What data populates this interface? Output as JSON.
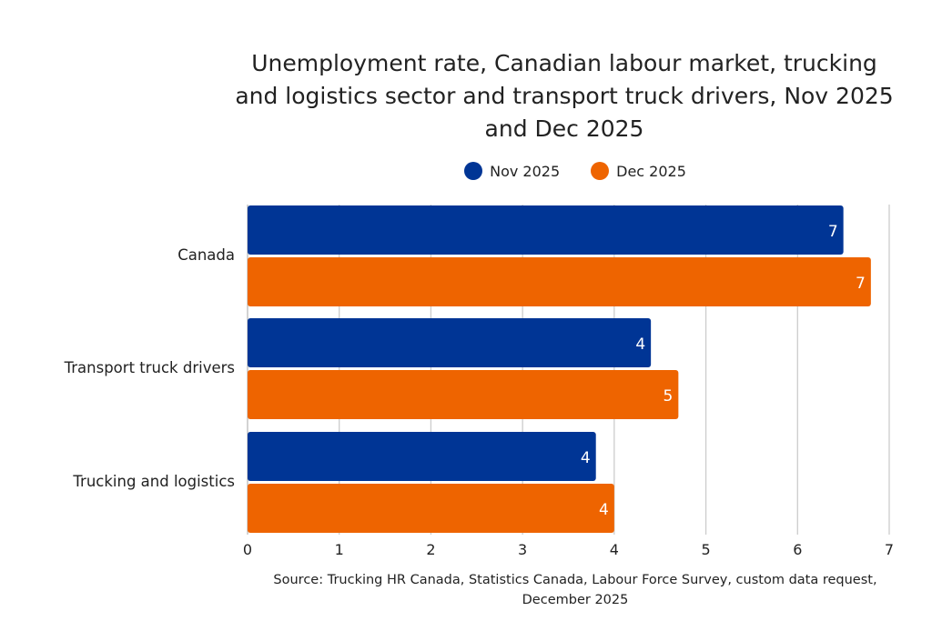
{
  "chart_data": {
    "type": "bar",
    "orientation": "horizontal",
    "title": "Unemployment rate, Canadian labour market, trucking and logistics sector and transport truck drivers, Nov 2025 and Dec 2025",
    "categories": [
      "Canada",
      "Transport truck drivers",
      "Trucking and logistics"
    ],
    "series": [
      {
        "name": "Nov 2025",
        "color": "#003595",
        "values": [
          6.5,
          4.4,
          3.8
        ],
        "labels": [
          "7",
          "4",
          "4"
        ]
      },
      {
        "name": "Dec 2025",
        "color": "#EE6400",
        "values": [
          6.8,
          4.7,
          4.0
        ],
        "labels": [
          "7",
          "5",
          "4"
        ]
      }
    ],
    "xlim": [
      0,
      7
    ],
    "xticks": [
      "0",
      "1",
      "2",
      "3",
      "4",
      "5",
      "6",
      "7"
    ],
    "grid": true,
    "legend": "top",
    "source": "Source: Trucking HR Canada, Statistics Canada, Labour Force Survey, custom data request, December 2025"
  }
}
